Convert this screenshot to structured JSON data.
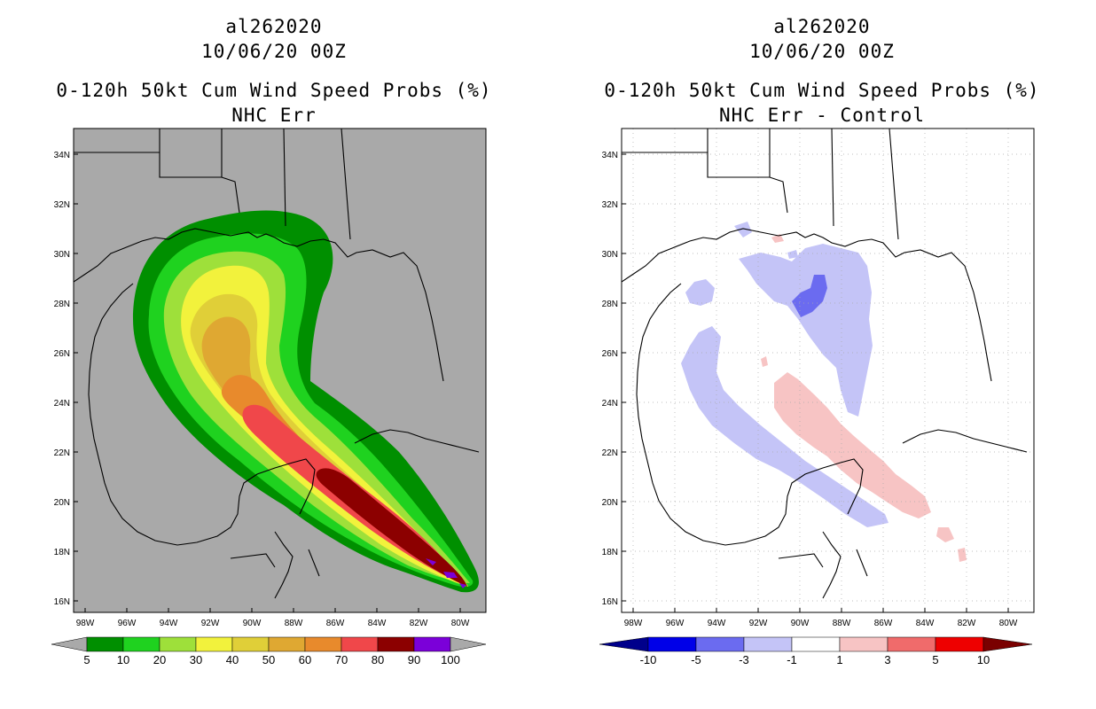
{
  "left": {
    "storm_id": "al262020",
    "datetime": "10/06/20 00Z",
    "product": "0-120h 50kt Cum Wind Speed Probs (%)",
    "subtitle": "NHC Err",
    "lat_labels": [
      "34N",
      "32N",
      "30N",
      "28N",
      "26N",
      "24N",
      "22N",
      "20N",
      "18N",
      "16N"
    ],
    "lon_labels": [
      "98W",
      "96W",
      "94W",
      "92W",
      "90W",
      "88W",
      "86W",
      "84W",
      "82W",
      "80W"
    ],
    "colorbar": {
      "labels": [
        "5",
        "10",
        "20",
        "30",
        "40",
        "50",
        "60",
        "70",
        "80",
        "90",
        "100"
      ],
      "colors": [
        "#008f00",
        "#1fd21f",
        "#9ee03a",
        "#f2f23c",
        "#e0cf38",
        "#dfa832",
        "#e88a2c",
        "#f0474a",
        "#8c0000",
        "#7b00d9"
      ],
      "end_color": "#a9a9a9"
    },
    "background_color": "#a9a9a9"
  },
  "right": {
    "storm_id": "al262020",
    "datetime": "10/06/20 00Z",
    "product": "0-120h 50kt Cum Wind Speed Probs (%)",
    "subtitle": "NHC Err - Control",
    "lat_labels": [
      "34N",
      "32N",
      "30N",
      "28N",
      "26N",
      "24N",
      "22N",
      "20N",
      "18N",
      "16N"
    ],
    "lon_labels": [
      "98W",
      "96W",
      "94W",
      "92W",
      "90W",
      "88W",
      "86W",
      "84W",
      "82W",
      "80W"
    ],
    "colorbar": {
      "labels": [
        "-10",
        "-5",
        "-3",
        "-1",
        "1",
        "3",
        "5",
        "10"
      ],
      "colors": [
        "#0000e8",
        "#6b6bf0",
        "#c4c4f7",
        "#ffffff",
        "#f7c4c4",
        "#f06b6b",
        "#ee0000"
      ],
      "low_end_color": "#00008b",
      "high_end_color": "#7a0000"
    },
    "background_color": "#ffffff"
  }
}
